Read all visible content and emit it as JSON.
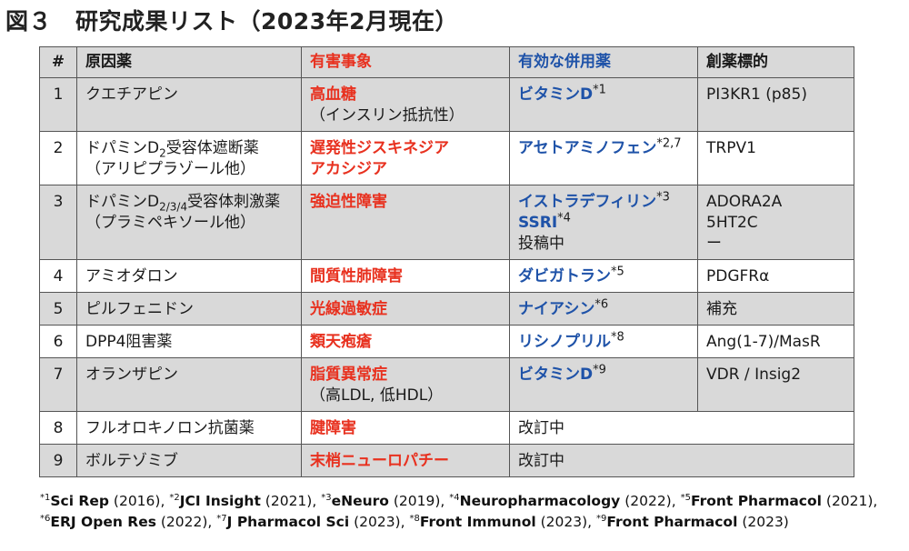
{
  "title": {
    "fig": "図３",
    "text": "研究成果リスト（2023年2月現在）"
  },
  "headers": {
    "idx": "#",
    "drug": "原因薬",
    "adverse": "有害事象",
    "combo": "有効な併用薬",
    "target": "創薬標的"
  },
  "rows": [
    {
      "idx": "1",
      "drug1": "クエチアピン",
      "drug2": "",
      "adv1": "高血糖",
      "adv2": "（インスリン抵抗性）",
      "combo": [
        {
          "text": "ビタミンD",
          "note": "*1",
          "style": "blue"
        }
      ],
      "target": [
        "PI3KR1 (p85)"
      ]
    },
    {
      "idx": "2",
      "drug1a": "ドパミンD",
      "drug1sub": "2",
      "drug1b": "受容体遮断薬",
      "drug2": "（アリピプラゾール他）",
      "adv1": "遅発性ジスキネジア",
      "adv1b": "アカシジア",
      "combo": [
        {
          "text": "アセトアミノフェン",
          "note": "*2,7",
          "style": "blue"
        }
      ],
      "target": [
        "TRPV1"
      ]
    },
    {
      "idx": "3",
      "drug1a": "ドパミンD",
      "drug1sub": "2/3/4",
      "drug1b": "受容体刺激薬",
      "drug2": "（プラミペキソール他）",
      "adv1": "強迫性障害",
      "combo": [
        {
          "text": "イストラデフィリン",
          "note": "*3",
          "style": "blue"
        },
        {
          "text": "SSRI",
          "note": "*4",
          "style": "blue"
        },
        {
          "text": "投稿中",
          "note": "",
          "style": "dark"
        }
      ],
      "target": [
        "ADORA2A",
        "5HT2C",
        "ー"
      ]
    },
    {
      "idx": "4",
      "drug1": "アミオダロン",
      "adv1": "間質性肺障害",
      "combo": [
        {
          "text": "ダビガトラン",
          "note": "*5",
          "style": "blue"
        }
      ],
      "target": [
        "PDGFRα"
      ]
    },
    {
      "idx": "5",
      "drug1": "ピルフェニドン",
      "adv1": "光線過敏症",
      "combo": [
        {
          "text": "ナイアシン",
          "note": "*6",
          "style": "blue"
        }
      ],
      "target": [
        "補充"
      ]
    },
    {
      "idx": "6",
      "drug1": "DPP4阻害薬",
      "adv1": "類天疱瘡",
      "combo": [
        {
          "text": "リシノプリル",
          "note": "*8",
          "style": "blue"
        }
      ],
      "target": [
        "Ang(1-7)/MasR"
      ]
    },
    {
      "idx": "7",
      "drug1": "オランザピン",
      "adv1": "脂質異常症",
      "adv2": "（高LDL, 低HDL）",
      "combo": [
        {
          "text": "ビタミンD",
          "note": "*9",
          "style": "blue"
        }
      ],
      "target": [
        "VDR / Insig2"
      ]
    },
    {
      "idx": "8",
      "drug1": "フルオロキノロン抗菌薬",
      "adv1": "腱障害",
      "revise": "改訂中"
    },
    {
      "idx": "9",
      "drug1": "ボルテゾミブ",
      "adv1": "末梢ニューロパチー",
      "revise": "改訂中"
    }
  ],
  "references": [
    {
      "n": "*1",
      "journal": "Sci Rep",
      "year": " (2016), "
    },
    {
      "n": "*2",
      "journal": "JCI Insight",
      "year": " (2021), "
    },
    {
      "n": "*3",
      "journal": "eNeuro",
      "year": " (2019), "
    },
    {
      "n": "*4",
      "journal": "Neuropharmacology",
      "year": " (2022), "
    },
    {
      "n": "*5",
      "journal": "Front Pharmacol",
      "year": " (2021),"
    },
    {
      "n": "*6",
      "journal": "ERJ Open Res",
      "year": " (2022), "
    },
    {
      "n": "*7",
      "journal": "J Pharmacol Sci",
      "year": " (2023), "
    },
    {
      "n": "*8",
      "journal": "Front Immunol",
      "year": " (2023), "
    },
    {
      "n": "*9",
      "journal": "Front Pharmacol",
      "year": " (2023)"
    }
  ],
  "colors": {
    "adverse": "#e8311f",
    "combo": "#1e52a8",
    "shade": "#d9d9d9"
  }
}
